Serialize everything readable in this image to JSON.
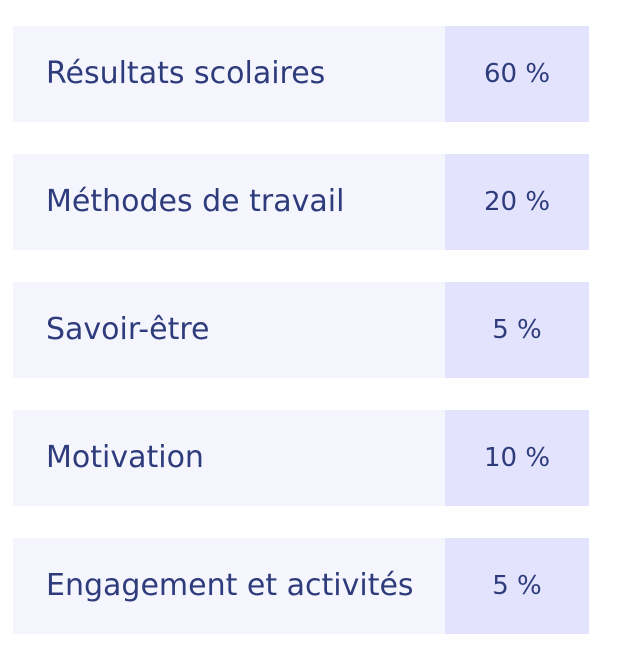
{
  "criteria": [
    {
      "label": "Résultats scolaires",
      "weight": "60 %"
    },
    {
      "label": "Méthodes de travail",
      "weight": "20 %"
    },
    {
      "label": "Savoir-être",
      "weight": "5 %"
    },
    {
      "label": "Motivation",
      "weight": "10 %"
    },
    {
      "label": "Engagement et activités",
      "weight": "5 %"
    }
  ],
  "colors": {
    "label_background": "#f5f5fe",
    "weight_background": "#e3e3fd",
    "text": "#2f3c7c"
  }
}
